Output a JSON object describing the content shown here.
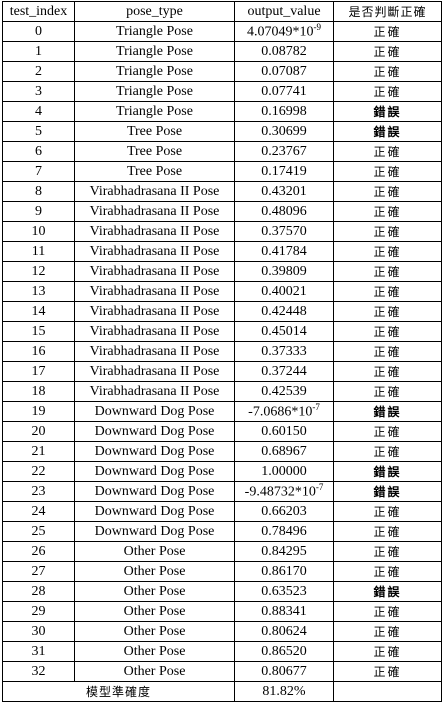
{
  "headers": {
    "test_index": "test_index",
    "pose_type": "pose_type",
    "output_value": "output_value",
    "verdict": "是否判斷正確"
  },
  "rows": [
    {
      "idx": "0",
      "pose": "Triangle Pose",
      "out": "4.07049*10",
      "exp": "-9",
      "verdict": "正確",
      "correct": true
    },
    {
      "idx": "1",
      "pose": "Triangle Pose",
      "out": "0.08782",
      "verdict": "正確",
      "correct": true
    },
    {
      "idx": "2",
      "pose": "Triangle Pose",
      "out": "0.07087",
      "verdict": "正確",
      "correct": true
    },
    {
      "idx": "3",
      "pose": "Triangle Pose",
      "out": "0.07741",
      "verdict": "正確",
      "correct": true
    },
    {
      "idx": "4",
      "pose": "Triangle Pose",
      "out": "0.16998",
      "verdict": "錯誤",
      "correct": false
    },
    {
      "idx": "5",
      "pose": "Tree Pose",
      "out": "0.30699",
      "verdict": "錯誤",
      "correct": false
    },
    {
      "idx": "6",
      "pose": "Tree Pose",
      "out": "0.23767",
      "verdict": "正確",
      "correct": true
    },
    {
      "idx": "7",
      "pose": "Tree Pose",
      "out": "0.17419",
      "verdict": "正確",
      "correct": true
    },
    {
      "idx": "8",
      "pose": "Virabhadrasana II Pose",
      "out": "0.43201",
      "verdict": "正確",
      "correct": true
    },
    {
      "idx": "9",
      "pose": "Virabhadrasana II Pose",
      "out": "0.48096",
      "verdict": "正確",
      "correct": true
    },
    {
      "idx": "10",
      "pose": "Virabhadrasana II Pose",
      "out": "0.37570",
      "verdict": "正確",
      "correct": true
    },
    {
      "idx": "11",
      "pose": "Virabhadrasana II Pose",
      "out": "0.41784",
      "verdict": "正確",
      "correct": true
    },
    {
      "idx": "12",
      "pose": "Virabhadrasana II Pose",
      "out": "0.39809",
      "verdict": "正確",
      "correct": true
    },
    {
      "idx": "13",
      "pose": "Virabhadrasana II Pose",
      "out": "0.40021",
      "verdict": "正確",
      "correct": true
    },
    {
      "idx": "14",
      "pose": "Virabhadrasana II Pose",
      "out": "0.42448",
      "verdict": "正確",
      "correct": true
    },
    {
      "idx": "15",
      "pose": "Virabhadrasana II Pose",
      "out": "0.45014",
      "verdict": "正確",
      "correct": true
    },
    {
      "idx": "16",
      "pose": "Virabhadrasana II Pose",
      "out": "0.37333",
      "verdict": "正確",
      "correct": true
    },
    {
      "idx": "17",
      "pose": "Virabhadrasana II Pose",
      "out": "0.37244",
      "verdict": "正確",
      "correct": true
    },
    {
      "idx": "18",
      "pose": "Virabhadrasana II Pose",
      "out": "0.42539",
      "verdict": "正確",
      "correct": true
    },
    {
      "idx": "19",
      "pose": "Downward Dog Pose",
      "out": "-7.0686*10",
      "exp": "-7",
      "verdict": "錯誤",
      "correct": false
    },
    {
      "idx": "20",
      "pose": "Downward Dog Pose",
      "out": "0.60150",
      "verdict": "正確",
      "correct": true
    },
    {
      "idx": "21",
      "pose": "Downward Dog Pose",
      "out": "0.68967",
      "verdict": "正確",
      "correct": true
    },
    {
      "idx": "22",
      "pose": "Downward Dog Pose",
      "out": "1.00000",
      "verdict": "錯誤",
      "correct": false
    },
    {
      "idx": "23",
      "pose": "Downward Dog Pose",
      "out": "-9.48732*10",
      "exp": "-7",
      "verdict": "錯誤",
      "correct": false
    },
    {
      "idx": "24",
      "pose": "Downward Dog Pose",
      "out": "0.66203",
      "verdict": "正確",
      "correct": true
    },
    {
      "idx": "25",
      "pose": "Downward Dog Pose",
      "out": "0.78496",
      "verdict": "正確",
      "correct": true
    },
    {
      "idx": "26",
      "pose": "Other Pose",
      "out": "0.84295",
      "verdict": "正確",
      "correct": true
    },
    {
      "idx": "27",
      "pose": "Other Pose",
      "out": "0.86170",
      "verdict": "正確",
      "correct": true
    },
    {
      "idx": "28",
      "pose": "Other Pose",
      "out": "0.63523",
      "verdict": "錯誤",
      "correct": false
    },
    {
      "idx": "29",
      "pose": "Other Pose",
      "out": "0.88341",
      "verdict": "正確",
      "correct": true
    },
    {
      "idx": "30",
      "pose": "Other Pose",
      "out": "0.80624",
      "verdict": "正確",
      "correct": true
    },
    {
      "idx": "31",
      "pose": "Other Pose",
      "out": "0.86520",
      "verdict": "正確",
      "correct": true
    },
    {
      "idx": "32",
      "pose": "Other Pose",
      "out": "0.80677",
      "verdict": "正確",
      "correct": true
    }
  ],
  "footer": {
    "label": "模型準確度",
    "value": "81.82%"
  }
}
